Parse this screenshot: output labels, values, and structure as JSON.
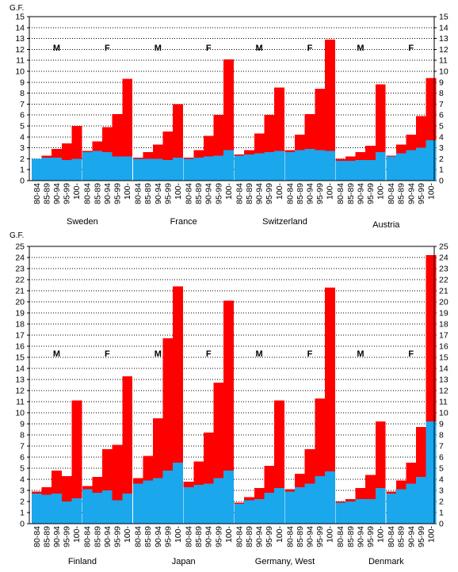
{
  "colors": {
    "base": "#1aa7ec",
    "excess": "#ff0000",
    "grid": "#000000",
    "background": "#ffffff"
  },
  "chart_data": [
    {
      "type": "bar",
      "ylabel": "G.F.",
      "ylim": [
        0,
        15
      ],
      "yticks": [
        0,
        1,
        2,
        3,
        4,
        5,
        6,
        7,
        8,
        9,
        10,
        11,
        12,
        13,
        14,
        15
      ],
      "categories": [
        "80-84",
        "85-89",
        "90-94",
        "95-99",
        "100-"
      ],
      "series": [
        {
          "name": "base",
          "color": "#1aa7ec"
        },
        {
          "name": "excess",
          "color": "#ff0000"
        }
      ],
      "countries": [
        {
          "name": "Sweden",
          "groups": [
            {
              "sex": "M",
              "total": [
                2.0,
                2.3,
                2.9,
                3.4,
                5.0
              ],
              "base": [
                2.0,
                2.1,
                2.1,
                1.9,
                2.0
              ]
            },
            {
              "sex": "F",
              "total": [
                2.7,
                3.6,
                4.9,
                6.1,
                9.3
              ],
              "base": [
                2.6,
                2.7,
                2.6,
                2.2,
                2.2
              ]
            }
          ]
        },
        {
          "name": "France",
          "groups": [
            {
              "sex": "M",
              "total": [
                2.1,
                2.6,
                3.3,
                4.5,
                7.0
              ],
              "base": [
                2.0,
                2.0,
                2.0,
                1.9,
                2.1
              ]
            },
            {
              "sex": "F",
              "total": [
                2.1,
                2.8,
                4.1,
                6.0,
                11.1
              ],
              "base": [
                2.0,
                2.1,
                2.2,
                2.3,
                2.8
              ]
            }
          ]
        },
        {
          "name": "Switzerland",
          "groups": [
            {
              "sex": "M",
              "total": [
                2.4,
                2.8,
                4.3,
                6.0,
                8.5
              ],
              "base": [
                2.3,
                2.4,
                2.5,
                2.6,
                2.7
              ]
            },
            {
              "sex": "F",
              "total": [
                2.8,
                4.2,
                6.1,
                8.4,
                12.9
              ],
              "base": [
                2.6,
                2.8,
                2.9,
                2.8,
                2.7
              ]
            }
          ]
        },
        {
          "name": "Austria",
          "groups": [
            {
              "sex": "M",
              "total": [
                2.0,
                2.2,
                2.6,
                3.2,
                8.8
              ],
              "base": [
                1.8,
                1.8,
                1.9,
                1.9,
                2.6
              ]
            },
            {
              "sex": "F",
              "total": [
                2.3,
                3.3,
                4.2,
                5.9,
                9.4
              ],
              "base": [
                2.2,
                2.5,
                2.8,
                3.0,
                3.7
              ]
            }
          ]
        }
      ]
    },
    {
      "type": "bar",
      "ylabel": "G.F.",
      "ylim": [
        0,
        25
      ],
      "yticks": [
        0,
        1,
        2,
        3,
        4,
        5,
        6,
        7,
        8,
        9,
        10,
        11,
        12,
        13,
        14,
        15,
        16,
        17,
        18,
        19,
        20,
        21,
        22,
        23,
        24,
        25
      ],
      "categories": [
        "80-84",
        "85-89",
        "90-94",
        "95-99",
        "100-"
      ],
      "series": [
        {
          "name": "base",
          "color": "#1aa7ec"
        },
        {
          "name": "excess",
          "color": "#ff0000"
        }
      ],
      "countries": [
        {
          "name": "Finland",
          "groups": [
            {
              "sex": "M",
              "total": [
                2.9,
                3.3,
                4.8,
                4.3,
                11.1
              ],
              "base": [
                2.7,
                2.6,
                2.7,
                2.0,
                2.3
              ]
            },
            {
              "sex": "F",
              "total": [
                3.4,
                4.2,
                6.7,
                7.1,
                13.3
              ],
              "base": [
                3.1,
                2.8,
                3.0,
                2.1,
                2.7
              ]
            }
          ]
        },
        {
          "name": "Japan",
          "groups": [
            {
              "sex": "M",
              "total": [
                4.1,
                6.1,
                9.5,
                16.7,
                21.4
              ],
              "base": [
                3.6,
                3.9,
                4.1,
                4.8,
                5.5
              ]
            },
            {
              "sex": "F",
              "total": [
                3.8,
                5.6,
                8.2,
                12.7,
                20.1
              ],
              "base": [
                3.3,
                3.5,
                3.6,
                4.1,
                4.8
              ]
            }
          ]
        },
        {
          "name": "Germany, West",
          "groups": [
            {
              "sex": "M",
              "total": [
                1.9,
                2.4,
                3.2,
                5.2,
                11.1
              ],
              "base": [
                1.8,
                2.1,
                2.2,
                2.8,
                3.2
              ]
            },
            {
              "sex": "F",
              "total": [
                3.1,
                4.5,
                6.7,
                11.3,
                21.3
              ],
              "base": [
                2.9,
                3.3,
                3.6,
                4.3,
                4.7
              ]
            }
          ]
        },
        {
          "name": "Denmark",
          "groups": [
            {
              "sex": "M",
              "total": [
                2.0,
                2.2,
                3.2,
                4.4,
                9.2
              ],
              "base": [
                1.9,
                2.0,
                2.2,
                2.2,
                3.2
              ]
            },
            {
              "sex": "F",
              "total": [
                2.9,
                3.9,
                5.5,
                8.7,
                24.2
              ],
              "base": [
                2.7,
                3.1,
                3.6,
                4.2,
                9.2
              ]
            }
          ]
        }
      ]
    }
  ]
}
